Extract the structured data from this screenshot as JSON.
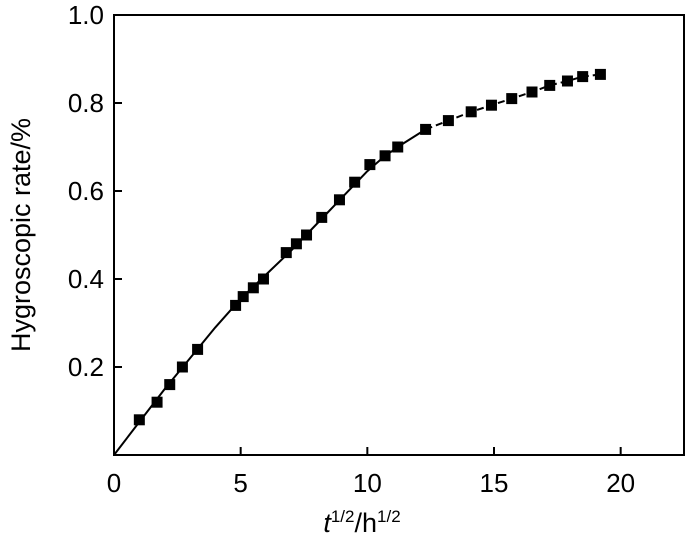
{
  "chart_data": {
    "type": "line",
    "title": "",
    "xlabel": {
      "base1": "t",
      "sup1": "1/2",
      "base2": "/h",
      "sup2": "1/2"
    },
    "ylabel": "Hygroscopic rate/%",
    "xlim": [
      0,
      22.5
    ],
    "ylim": [
      0,
      1.0
    ],
    "xticks": [
      "0",
      "5",
      "10",
      "15",
      "20"
    ],
    "yticks": [
      "0.2",
      "0.4",
      "0.6",
      "0.8",
      "1.0"
    ],
    "xtick_values": [
      0,
      5,
      10,
      15,
      20
    ],
    "ytick_values": [
      0.2,
      0.4,
      0.6,
      0.8,
      1.0
    ],
    "grid": false,
    "legend": "none",
    "colors": {
      "line": "#000000",
      "marker": "#000000",
      "axis": "#000000"
    },
    "series": [
      {
        "name": "",
        "marker": "square",
        "x": [
          1.0,
          1.7,
          2.2,
          2.7,
          3.3,
          4.8,
          5.1,
          5.5,
          5.9,
          6.8,
          7.2,
          7.6,
          8.2,
          8.9,
          9.5,
          10.1,
          10.7,
          11.2,
          12.3,
          13.2,
          14.1,
          14.9,
          15.7,
          16.5,
          17.2,
          17.9,
          18.5,
          19.2
        ],
        "y": [
          0.08,
          0.12,
          0.16,
          0.2,
          0.24,
          0.34,
          0.36,
          0.38,
          0.4,
          0.46,
          0.48,
          0.5,
          0.54,
          0.58,
          0.62,
          0.66,
          0.68,
          0.7,
          0.74,
          0.76,
          0.78,
          0.795,
          0.81,
          0.825,
          0.84,
          0.85,
          0.86,
          0.865
        ]
      }
    ],
    "fit_curves": [
      {
        "style": "solid",
        "x": [
          0,
          1.0,
          2.0,
          3.0,
          4.0,
          5.0,
          6.0,
          7.0,
          8.0,
          9.0,
          10.0,
          10.6,
          11.2,
          12.3
        ],
        "y": [
          0,
          0.075,
          0.15,
          0.22,
          0.29,
          0.355,
          0.41,
          0.465,
          0.525,
          0.585,
          0.645,
          0.675,
          0.7,
          0.74
        ]
      },
      {
        "style": "dashed",
        "x": [
          12.3,
          13.2,
          14.1,
          14.9,
          15.7,
          16.5,
          17.2,
          17.9,
          18.5,
          19.2
        ],
        "y": [
          0.74,
          0.76,
          0.78,
          0.795,
          0.81,
          0.825,
          0.84,
          0.85,
          0.86,
          0.865
        ]
      }
    ]
  }
}
